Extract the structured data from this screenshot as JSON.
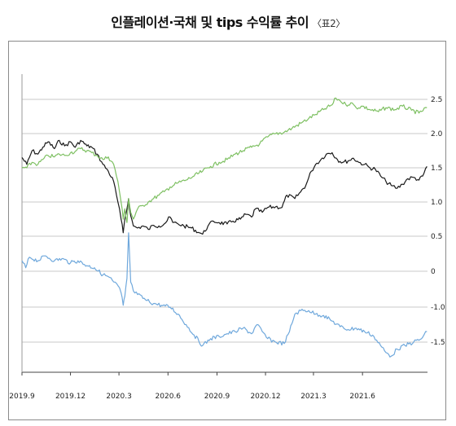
{
  "title": "인플레이션·국채 및 tips 수익률 추이",
  "subtitle": "〈표2〉",
  "chart_data": {
    "type": "line",
    "title": "인플레이션·국채 및 tips 수익률 추이",
    "x_ticks": [
      "2019.9",
      "2019.12",
      "2020.3",
      "2020.6",
      "2020.9",
      "2020.12",
      "2021.3",
      "2021.6"
    ],
    "y_ticks": [
      "2.5",
      "2.0",
      "1.5",
      "1.0",
      "0.5",
      "0",
      "-1.0",
      "-1.5"
    ],
    "ylim": [
      -1.5,
      2.5
    ],
    "grid": true,
    "legend": "none",
    "colors": {
      "black": "#1a1a1a",
      "green": "#7ec062",
      "blue": "#6fa8dc"
    },
    "series": [
      {
        "color": "black",
        "points": [
          [
            "2019-09-01",
            1.65
          ],
          [
            "2019-09-10",
            1.55
          ],
          [
            "2019-09-20",
            1.75
          ],
          [
            "2019-10-01",
            1.7
          ],
          [
            "2019-10-10",
            1.8
          ],
          [
            "2019-10-20",
            1.88
          ],
          [
            "2019-11-01",
            1.78
          ],
          [
            "2019-11-10",
            1.9
          ],
          [
            "2019-11-20",
            1.82
          ],
          [
            "2019-12-01",
            1.88
          ],
          [
            "2019-12-10",
            1.8
          ],
          [
            "2019-12-20",
            1.9
          ],
          [
            "2020-01-01",
            1.82
          ],
          [
            "2020-01-10",
            1.8
          ],
          [
            "2020-01-20",
            1.7
          ],
          [
            "2020-01-31",
            1.55
          ],
          [
            "2020-02-10",
            1.45
          ],
          [
            "2020-02-20",
            1.3
          ],
          [
            "2020-02-28",
            1.0
          ],
          [
            "2020-03-05",
            0.75
          ],
          [
            "2020-03-09",
            0.55
          ],
          [
            "2020-03-12",
            0.75
          ],
          [
            "2020-03-16",
            0.9
          ],
          [
            "2020-03-19",
            1.05
          ],
          [
            "2020-03-23",
            0.8
          ],
          [
            "2020-03-28",
            0.65
          ],
          [
            "2020-04-05",
            0.62
          ],
          [
            "2020-04-15",
            0.65
          ],
          [
            "2020-04-25",
            0.6
          ],
          [
            "2020-05-05",
            0.66
          ],
          [
            "2020-05-15",
            0.65
          ],
          [
            "2020-05-25",
            0.68
          ],
          [
            "2020-06-05",
            0.78
          ],
          [
            "2020-06-10",
            0.7
          ],
          [
            "2020-06-20",
            0.68
          ],
          [
            "2020-07-01",
            0.65
          ],
          [
            "2020-07-15",
            0.62
          ],
          [
            "2020-07-30",
            0.55
          ],
          [
            "2020-08-05",
            0.53
          ],
          [
            "2020-08-15",
            0.65
          ],
          [
            "2020-08-25",
            0.72
          ],
          [
            "2020-09-05",
            0.7
          ],
          [
            "2020-09-20",
            0.68
          ],
          [
            "2020-10-01",
            0.72
          ],
          [
            "2020-10-15",
            0.75
          ],
          [
            "2020-10-25",
            0.82
          ],
          [
            "2020-11-05",
            0.78
          ],
          [
            "2020-11-12",
            0.9
          ],
          [
            "2020-11-25",
            0.85
          ],
          [
            "2020-12-05",
            0.92
          ],
          [
            "2020-12-20",
            0.93
          ],
          [
            "2021-01-01",
            0.92
          ],
          [
            "2021-01-10",
            1.1
          ],
          [
            "2021-01-25",
            1.05
          ],
          [
            "2021-02-05",
            1.15
          ],
          [
            "2021-02-15",
            1.25
          ],
          [
            "2021-02-25",
            1.45
          ],
          [
            "2021-03-05",
            1.55
          ],
          [
            "2021-03-15",
            1.62
          ],
          [
            "2021-03-25",
            1.7
          ],
          [
            "2021-04-05",
            1.72
          ],
          [
            "2021-04-15",
            1.62
          ],
          [
            "2021-04-25",
            1.58
          ],
          [
            "2021-05-05",
            1.6
          ],
          [
            "2021-05-15",
            1.64
          ],
          [
            "2021-05-25",
            1.58
          ],
          [
            "2021-06-05",
            1.55
          ],
          [
            "2021-06-15",
            1.5
          ],
          [
            "2021-06-25",
            1.48
          ],
          [
            "2021-07-05",
            1.38
          ],
          [
            "2021-07-15",
            1.3
          ],
          [
            "2021-07-25",
            1.24
          ],
          [
            "2021-08-05",
            1.2
          ],
          [
            "2021-08-15",
            1.26
          ],
          [
            "2021-08-25",
            1.34
          ],
          [
            "2021-09-05",
            1.36
          ],
          [
            "2021-09-15",
            1.32
          ],
          [
            "2021-09-22",
            1.38
          ],
          [
            "2021-09-30",
            1.52
          ]
        ]
      },
      {
        "color": "green",
        "points": [
          [
            "2019-09-01",
            1.5
          ],
          [
            "2019-09-10",
            1.5
          ],
          [
            "2019-09-20",
            1.58
          ],
          [
            "2019-10-01",
            1.55
          ],
          [
            "2019-10-10",
            1.62
          ],
          [
            "2019-10-20",
            1.68
          ],
          [
            "2019-11-01",
            1.66
          ],
          [
            "2019-11-10",
            1.7
          ],
          [
            "2019-11-20",
            1.68
          ],
          [
            "2019-12-01",
            1.72
          ],
          [
            "2019-12-10",
            1.74
          ],
          [
            "2019-12-20",
            1.78
          ],
          [
            "2020-01-01",
            1.75
          ],
          [
            "2020-01-10",
            1.72
          ],
          [
            "2020-01-20",
            1.68
          ],
          [
            "2020-01-31",
            1.62
          ],
          [
            "2020-02-10",
            1.66
          ],
          [
            "2020-02-20",
            1.55
          ],
          [
            "2020-02-28",
            1.3
          ],
          [
            "2020-03-05",
            1.0
          ],
          [
            "2020-03-09",
            0.75
          ],
          [
            "2020-03-12",
            0.9
          ],
          [
            "2020-03-16",
            0.7
          ],
          [
            "2020-03-19",
            1.05
          ],
          [
            "2020-03-23",
            0.85
          ],
          [
            "2020-03-28",
            0.75
          ],
          [
            "2020-04-05",
            0.9
          ],
          [
            "2020-04-15",
            0.95
          ],
          [
            "2020-04-25",
            1.0
          ],
          [
            "2020-05-05",
            1.05
          ],
          [
            "2020-05-15",
            1.1
          ],
          [
            "2020-05-25",
            1.15
          ],
          [
            "2020-06-05",
            1.22
          ],
          [
            "2020-06-20",
            1.28
          ],
          [
            "2020-07-05",
            1.32
          ],
          [
            "2020-07-20",
            1.38
          ],
          [
            "2020-08-05",
            1.45
          ],
          [
            "2020-08-20",
            1.52
          ],
          [
            "2020-09-05",
            1.58
          ],
          [
            "2020-09-20",
            1.62
          ],
          [
            "2020-10-05",
            1.7
          ],
          [
            "2020-10-20",
            1.75
          ],
          [
            "2020-11-05",
            1.8
          ],
          [
            "2020-11-20",
            1.85
          ],
          [
            "2020-12-05",
            1.95
          ],
          [
            "2020-12-20",
            2.0
          ],
          [
            "2021-01-05",
            2.02
          ],
          [
            "2021-01-20",
            2.08
          ],
          [
            "2021-02-05",
            2.15
          ],
          [
            "2021-02-20",
            2.22
          ],
          [
            "2021-03-05",
            2.28
          ],
          [
            "2021-03-20",
            2.35
          ],
          [
            "2021-04-05",
            2.42
          ],
          [
            "2021-04-12",
            2.52
          ],
          [
            "2021-04-20",
            2.48
          ],
          [
            "2021-05-01",
            2.42
          ],
          [
            "2021-05-10",
            2.45
          ],
          [
            "2021-05-20",
            2.38
          ],
          [
            "2021-06-01",
            2.4
          ],
          [
            "2021-06-15",
            2.35
          ],
          [
            "2021-07-01",
            2.32
          ],
          [
            "2021-07-15",
            2.38
          ],
          [
            "2021-08-01",
            2.35
          ],
          [
            "2021-08-15",
            2.4
          ],
          [
            "2021-09-01",
            2.34
          ],
          [
            "2021-09-15",
            2.3
          ],
          [
            "2021-09-30",
            2.38
          ]
        ]
      },
      {
        "color": "blue",
        "points": [
          [
            "2019-09-01",
            0.15
          ],
          [
            "2019-09-08",
            0.05
          ],
          [
            "2019-09-15",
            0.2
          ],
          [
            "2019-10-01",
            0.15
          ],
          [
            "2019-10-15",
            0.22
          ],
          [
            "2019-11-01",
            0.15
          ],
          [
            "2019-11-15",
            0.18
          ],
          [
            "2019-12-01",
            0.12
          ],
          [
            "2019-12-15",
            0.15
          ],
          [
            "2020-01-01",
            0.08
          ],
          [
            "2020-01-15",
            0.05
          ],
          [
            "2020-01-31",
            -0.1
          ],
          [
            "2020-02-10",
            -0.15
          ],
          [
            "2020-02-20",
            -0.3
          ],
          [
            "2020-02-28",
            -0.4
          ],
          [
            "2020-03-05",
            -0.6
          ],
          [
            "2020-03-09",
            -0.95
          ],
          [
            "2020-03-12",
            -0.7
          ],
          [
            "2020-03-16",
            -0.2
          ],
          [
            "2020-03-19",
            0.55
          ],
          [
            "2020-03-23",
            -0.3
          ],
          [
            "2020-03-28",
            -0.55
          ],
          [
            "2020-04-05",
            -0.65
          ],
          [
            "2020-04-20",
            -0.8
          ],
          [
            "2020-05-05",
            -0.9
          ],
          [
            "2020-05-20",
            -0.95
          ],
          [
            "2020-06-05",
            -1.0
          ],
          [
            "2020-06-20",
            -1.1
          ],
          [
            "2020-07-05",
            -1.25
          ],
          [
            "2020-07-20",
            -1.4
          ],
          [
            "2020-08-05",
            -1.55
          ],
          [
            "2020-08-20",
            -1.45
          ],
          [
            "2020-09-05",
            -1.42
          ],
          [
            "2020-09-20",
            -1.38
          ],
          [
            "2020-10-05",
            -1.35
          ],
          [
            "2020-10-20",
            -1.3
          ],
          [
            "2020-11-05",
            -1.38
          ],
          [
            "2020-11-15",
            -1.25
          ],
          [
            "2020-11-25",
            -1.35
          ],
          [
            "2020-12-05",
            -1.45
          ],
          [
            "2020-12-20",
            -1.5
          ],
          [
            "2021-01-05",
            -1.52
          ],
          [
            "2021-01-15",
            -1.35
          ],
          [
            "2021-01-25",
            -1.1
          ],
          [
            "2021-02-05",
            -1.05
          ],
          [
            "2021-02-20",
            -1.05
          ],
          [
            "2021-03-05",
            -1.1
          ],
          [
            "2021-03-20",
            -1.12
          ],
          [
            "2021-04-05",
            -1.2
          ],
          [
            "2021-04-20",
            -1.28
          ],
          [
            "2021-05-05",
            -1.32
          ],
          [
            "2021-05-20",
            -1.3
          ],
          [
            "2021-06-05",
            -1.35
          ],
          [
            "2021-06-20",
            -1.4
          ],
          [
            "2021-07-05",
            -1.55
          ],
          [
            "2021-07-15",
            -1.65
          ],
          [
            "2021-07-25",
            -1.7
          ],
          [
            "2021-08-05",
            -1.6
          ],
          [
            "2021-08-20",
            -1.55
          ],
          [
            "2021-09-05",
            -1.5
          ],
          [
            "2021-09-20",
            -1.45
          ],
          [
            "2021-09-30",
            -1.35
          ]
        ]
      }
    ]
  }
}
